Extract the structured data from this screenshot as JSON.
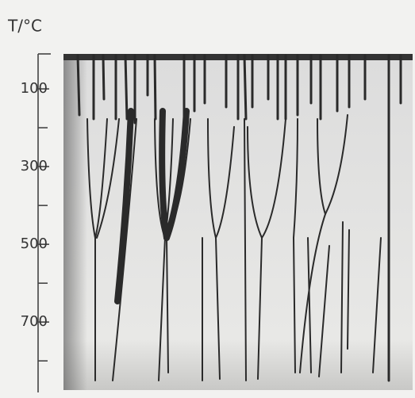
{
  "chart_data": {
    "type": "image",
    "ylabel": "T/°C",
    "ylim": [
      10,
      871
    ],
    "yticks": [
      100,
      300,
      500,
      700
    ],
    "minor_yticks": [
      200,
      400,
      600,
      800
    ]
  }
}
